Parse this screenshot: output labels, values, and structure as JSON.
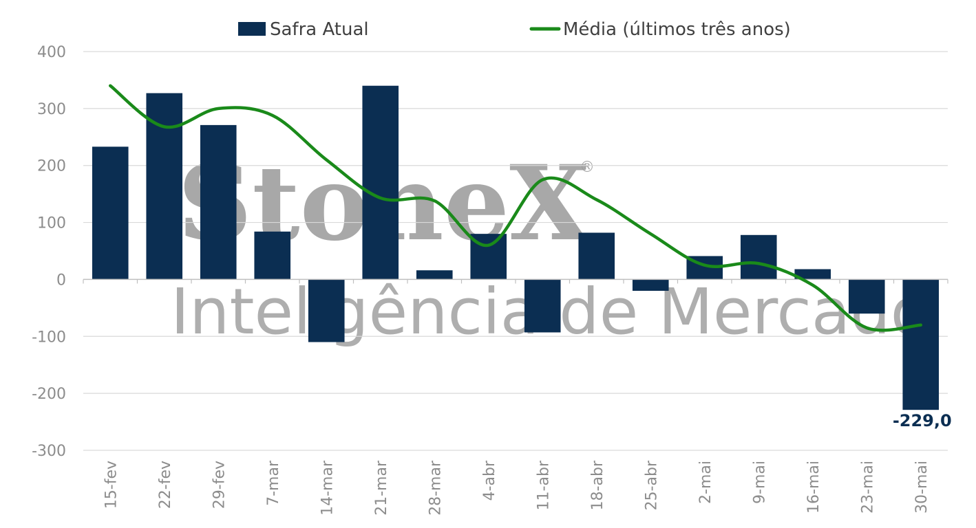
{
  "chart_data": {
    "type": "bar",
    "categories": [
      "15-fev",
      "22-fev",
      "29-fev",
      "7-mar",
      "14-mar",
      "21-mar",
      "28-mar",
      "4-abr",
      "11-abr",
      "18-abr",
      "25-abr",
      "2-mai",
      "9-mai",
      "16-mai",
      "23-mai",
      "30-mai"
    ],
    "series": [
      {
        "name": "Safra Atual",
        "type": "bar",
        "color": "#0b2e52",
        "values": [
          233,
          327,
          271,
          84,
          -110,
          340,
          16,
          80,
          -93,
          82,
          -20,
          41,
          78,
          18,
          -60,
          -229
        ]
      },
      {
        "name": "Média (últimos três anos)",
        "type": "line",
        "color": "#1a8a1a",
        "smooth": true,
        "values": [
          340,
          268,
          300,
          288,
          210,
          143,
          138,
          60,
          175,
          140,
          80,
          25,
          28,
          -10,
          -85,
          -80
        ]
      }
    ],
    "ylim": [
      -300,
      400
    ],
    "yticks": [
      "400",
      "300",
      "200",
      "100",
      "0",
      "-100",
      "-200",
      "-300"
    ],
    "ytick_values": [
      400,
      300,
      200,
      100,
      0,
      -100,
      -200,
      -300
    ],
    "annotation": {
      "text": "-229,0",
      "index": 15
    },
    "legend": "top-center",
    "grid": true
  },
  "watermark": {
    "brand": "StoneX",
    "registered": "®",
    "subtitle": "Inteligência de Mercado"
  }
}
